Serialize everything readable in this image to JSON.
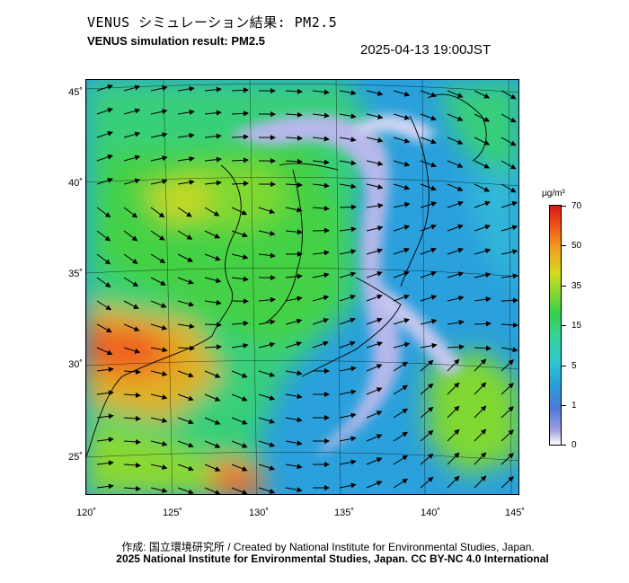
{
  "header": {
    "title_jp": "VENUS シミュレーション結果: PM2.5",
    "title_en": "VENUS simulation result: PM2.5",
    "timestamp": "2025-04-13 19:00JST"
  },
  "map": {
    "lat_labels": [
      "45˚",
      "40˚",
      "35˚",
      "30˚",
      "25˚"
    ],
    "lon_labels": [
      "120˚",
      "125˚",
      "130˚",
      "135˚",
      "140˚",
      "145˚"
    ]
  },
  "colorbar": {
    "unit": "µg/m³",
    "levels": [
      "70",
      "50",
      "35",
      "15",
      "5",
      "1",
      "0"
    ],
    "colors": [
      "#d81818",
      "#f0a020",
      "#d8d820",
      "#35d04a",
      "#2ec8d0",
      "#5078d8",
      "#9fa0e0",
      "#ffffff"
    ]
  },
  "footer": {
    "credit": "作成: 国立環境研究所 / Created by National Institute for Environmental Studies, Japan.",
    "copyright": "2025 National Institute for Environmental Studies, Japan. CC BY-NC 4.0 International"
  }
}
